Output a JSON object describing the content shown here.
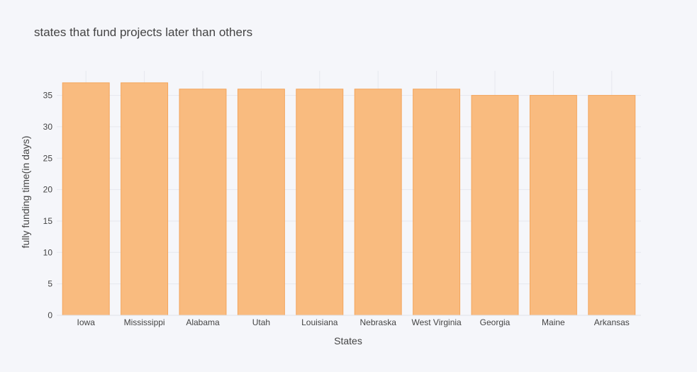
{
  "chart_data": {
    "type": "bar",
    "title": "states that fund projects later than others",
    "xlabel": "States",
    "ylabel": "fully funding time(in days)",
    "categories": [
      "Iowa",
      "Mississippi",
      "Alabama",
      "Utah",
      "Louisiana",
      "Nebraska",
      "West Virginia",
      "Georgia",
      "Maine",
      "Arkansas"
    ],
    "values": [
      37,
      37,
      36,
      36,
      36,
      36,
      36,
      35,
      35,
      35
    ],
    "ylim": [
      0,
      38.9
    ],
    "yticks": [
      0,
      5,
      10,
      15,
      20,
      25,
      30,
      35
    ],
    "grid": true,
    "colors": {
      "bar_fill": "#f9bb7f",
      "bar_edge": "#f4a55c",
      "background": "#f5f6fa",
      "grid": "#e6e8ee"
    }
  }
}
